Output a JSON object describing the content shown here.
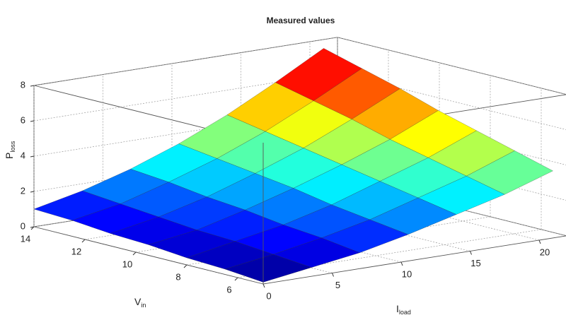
{
  "chart_data": {
    "type": "surface",
    "title": "Measured values",
    "xlabel": {
      "main": "I",
      "sub": "load"
    },
    "ylabel": {
      "main": "V",
      "sub": "in"
    },
    "zlabel": {
      "main": "P",
      "sub": "loss"
    },
    "x": [
      0,
      3.5,
      7,
      10.5,
      14,
      17.5,
      21
    ],
    "y": [
      5,
      6.5,
      8,
      9.5,
      11,
      12.5,
      14
    ],
    "z": [
      [
        0.1,
        0.5,
        0.9,
        1.5,
        2.2,
        2.9,
        3.8
      ],
      [
        0.3,
        0.7,
        1.2,
        1.8,
        2.6,
        3.4,
        4.4
      ],
      [
        0.4,
        0.9,
        1.4,
        2.1,
        3.0,
        3.9,
        5.0
      ],
      [
        0.6,
        1.0,
        1.7,
        2.5,
        3.4,
        4.4,
        5.6
      ],
      [
        0.7,
        1.2,
        1.9,
        2.8,
        3.8,
        5.0,
        6.3
      ],
      [
        0.9,
        1.4,
        2.2,
        3.1,
        4.2,
        5.5,
        6.9
      ],
      [
        1.0,
        1.6,
        2.4,
        3.4,
        4.6,
        6.0,
        7.5
      ]
    ],
    "xlim": [
      0,
      22
    ],
    "ylim": [
      5,
      14
    ],
    "zlim": [
      0,
      8
    ],
    "xticks": [
      0,
      5,
      10,
      15,
      20
    ],
    "yticks": [
      6,
      8,
      10,
      12,
      14
    ],
    "zticks": [
      0,
      2,
      4,
      6,
      8
    ],
    "colormap": "jet",
    "grid": true
  }
}
